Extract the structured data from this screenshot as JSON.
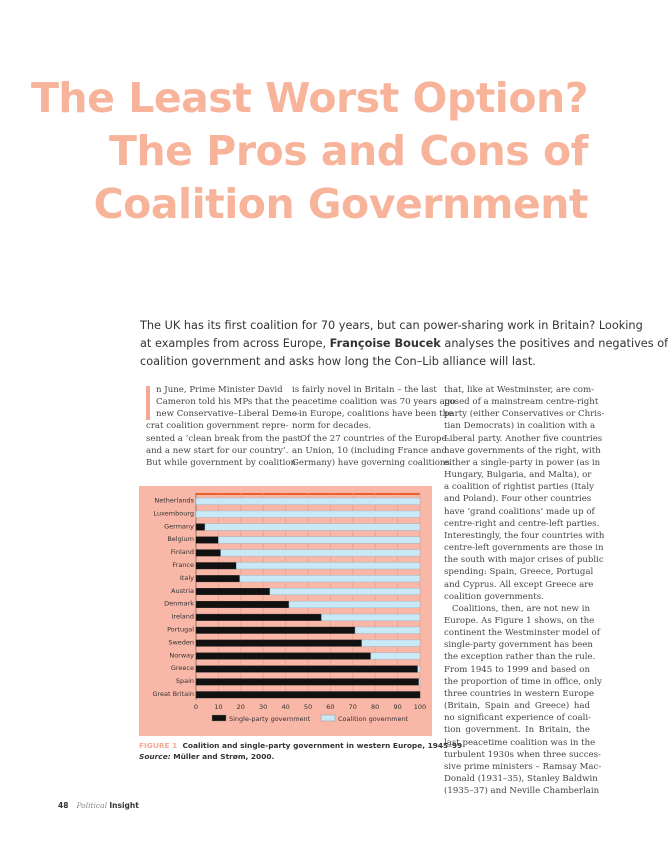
{
  "title": {
    "lines": [
      "The Least Worst Option?",
      "The Pros and Cons of",
      "Coalition Government"
    ],
    "color": "#f7b49b"
  },
  "intro": {
    "line1": "The UK has its first coalition for 70 years, but can power-sharing work in Britain? Looking",
    "line2_pre": "at examples from across Europe, ",
    "author": "Françoise Boucek",
    "line2_post": " analyses the positives and negatives of",
    "line3": "coalition government and asks how long the Con–Lib alliance will last."
  },
  "columns": {
    "col1": [
      {
        "t": "n June, Prime Minister David",
        "c": "dc"
      },
      {
        "t": "Cameron told his MPs that the",
        "c": "dc"
      },
      {
        "t": "new Conservative–Liberal Demo-",
        "c": "dc"
      },
      {
        "t": "crat coalition government repre-"
      },
      {
        "t": "sented a ‘clean break from the past"
      },
      {
        "t": "and a new start for our country’."
      },
      {
        "t": "But while government by coalition"
      }
    ],
    "col2": [
      {
        "t": "is fairly novel in Britain – the last"
      },
      {
        "t": "peacetime coalition was 70 years ago"
      },
      {
        "t": "– in Europe, coalitions have been the"
      },
      {
        "t": "norm for decades.",
        "c": "last"
      },
      {
        "t": "Of the 27 countries of the Europe-",
        "c": "ind"
      },
      {
        "t": "an Union, 10 (including France and"
      },
      {
        "t": "Germany) have governing coalitions"
      }
    ],
    "col3": [
      {
        "t": "that, like at Westminster, are com-"
      },
      {
        "t": "posed of a mainstream centre-right"
      },
      {
        "t": "party (either Conservatives or Chris-"
      },
      {
        "t": "tian Democrats) in coalition with a"
      },
      {
        "t": "Liberal party. Another five countries"
      },
      {
        "t": "have governments of the right, with"
      },
      {
        "t": "either a single-party in power (as in"
      },
      {
        "t": "Hungary, Bulgaria, and Malta), or"
      },
      {
        "t": "a coalition of rightist parties (Italy"
      },
      {
        "t": "and Poland). Four other countries"
      },
      {
        "t": "have ‘grand coalitions’ made up of"
      },
      {
        "t": "centre-right and centre-left parties."
      },
      {
        "t": "Interestingly, the four countries with"
      },
      {
        "t": "centre-left governments are those in"
      },
      {
        "t": "the south with major crises of public"
      },
      {
        "t": "spending: Spain, Greece, Portugal"
      },
      {
        "t": "and Cyprus. All except Greece are"
      },
      {
        "t": "coalition governments.",
        "c": "last"
      },
      {
        "t": "Coalitions, then, are not new in",
        "c": "ind"
      },
      {
        "t": "Europe. As Figure 1 shows, on the"
      },
      {
        "t": "continent the Westminster model of"
      },
      {
        "t": "single-party government has been"
      },
      {
        "t": "the exception rather than the rule."
      },
      {
        "t": "From 1945 to 1999 and based on"
      },
      {
        "t": "the proportion of time in office, only"
      },
      {
        "t": "three countries in western Europe"
      },
      {
        "t": "(Britain, Spain and Greece) had"
      },
      {
        "t": "no significant experience of coali-"
      },
      {
        "t": "tion government. In Britain, the"
      },
      {
        "t": "last peacetime coalition was in the"
      },
      {
        "t": "turbulent 1930s when three succes-"
      },
      {
        "t": "sive prime ministers – Ramsay Mac-"
      },
      {
        "t": "Donald (1931–35), Stanley Baldwin"
      },
      {
        "t": "(1935–37) and Neville Chamberlain"
      }
    ]
  },
  "chart_data": {
    "type": "bar",
    "orientation": "horizontal",
    "stacked": true,
    "categories": [
      "Netherlands",
      "Luxembourg",
      "Germany",
      "Belgium",
      "Finland",
      "France",
      "Italy",
      "Austria",
      "Denmark",
      "Ireland",
      "Portugal",
      "Sweden",
      "Norway",
      "Greece",
      "Spain",
      "Great Britain"
    ],
    "series": [
      {
        "name": "Single-party government",
        "color": "#111111",
        "values": [
          0,
          0,
          4,
          10,
          11,
          18,
          19.5,
          33,
          41.5,
          56,
          71,
          74,
          78,
          99,
          99.5,
          100
        ]
      },
      {
        "name": "Coalition government",
        "color": "#c9e9f6",
        "values": [
          100,
          100,
          96,
          90,
          89,
          82,
          80.5,
          67,
          58.5,
          44,
          29,
          26,
          22,
          1,
          0.5,
          0
        ]
      }
    ],
    "xlim": [
      0,
      100
    ],
    "xticks": [
      "0",
      "10",
      "20",
      "30",
      "40",
      "50",
      "60",
      "70",
      "80",
      "90",
      "100"
    ],
    "legend": "bottom",
    "grid": true,
    "background": "#f9b7a7"
  },
  "caption": {
    "figure_label": "FIGURE 1",
    "text": "Coalition and single-party government in western Europe, 1945–99",
    "source_label": "Source:",
    "source": "Müller and Strøm, 2000."
  },
  "footer": {
    "page": "48",
    "mag_italic": "Political",
    "mag_bold": "Insight"
  }
}
